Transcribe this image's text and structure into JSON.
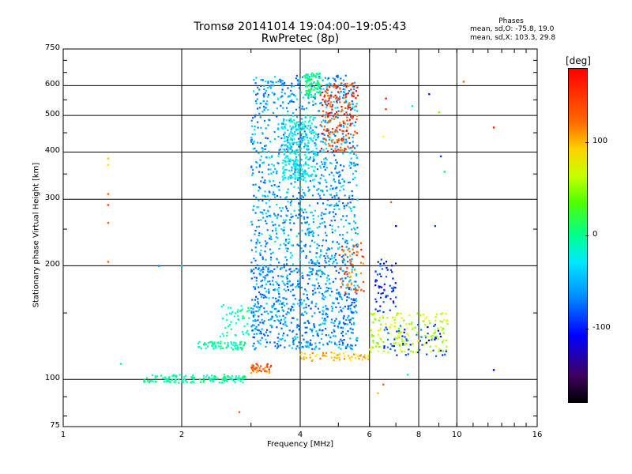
{
  "chart_data": {
    "type": "scatter",
    "title": "Tromsø 20141014 19:04:00–19:05:43",
    "subtitle": "RwPretec (8p)",
    "xlabel": "Frequency [MHz]",
    "ylabel": "Stationary phase Virtual Height [km]",
    "x_scale": "log",
    "y_scale": "log",
    "xlim": [
      1,
      16
    ],
    "ylim": [
      75,
      750
    ],
    "x_ticks": [
      1,
      2,
      4,
      6,
      8,
      10,
      16
    ],
    "x_tick_labels": [
      "1",
      "2",
      "4",
      "6",
      "8",
      "10",
      "16"
    ],
    "y_ticks": [
      75,
      100,
      200,
      300,
      400,
      500,
      600,
      750
    ],
    "y_tick_labels": [
      "75",
      "100",
      "200",
      "300",
      "400",
      "500",
      "600",
      "750"
    ],
    "grid": true,
    "legend": {
      "header": "Phases",
      "line_o": "mean, sd,O: -75.8, 19.0",
      "line_x": "mean, sd,X: 103.3, 29.8"
    },
    "colorbar": {
      "title": "[deg]",
      "ticks": [
        100,
        0,
        -100
      ],
      "tick_labels": [
        "100",
        "0",
        "-100"
      ],
      "range": [
        -180,
        180
      ]
    },
    "clusters": [
      {
        "x": [
          1.6,
          2.9
        ],
        "y": [
          98,
          103
        ],
        "phase": -30,
        "count": 140
      },
      {
        "x": [
          2.2,
          2.9
        ],
        "y": [
          120,
          126
        ],
        "phase": -35,
        "count": 70
      },
      {
        "x": [
          2.5,
          3.0
        ],
        "y": [
          130,
          160
        ],
        "phase": -40,
        "count": 50
      },
      {
        "x": [
          3.0,
          3.4
        ],
        "y": [
          104,
          110
        ],
        "phase": 150,
        "count": 40
      },
      {
        "x": [
          3.0,
          5.6
        ],
        "y": [
          200,
          640
        ],
        "phase": -90,
        "count": 1100
      },
      {
        "x": [
          3.0,
          5.6
        ],
        "y": [
          120,
          200
        ],
        "phase": -95,
        "count": 700
      },
      {
        "x": [
          3.6,
          4.4
        ],
        "y": [
          335,
          500
        ],
        "phase": -60,
        "count": 250
      },
      {
        "x": [
          4.1,
          4.5
        ],
        "y": [
          560,
          650
        ],
        "phase": -20,
        "count": 80
      },
      {
        "x": [
          4.5,
          5.6
        ],
        "y": [
          400,
          610
        ],
        "phase": 160,
        "count": 180
      },
      {
        "x": [
          5.0,
          5.8
        ],
        "y": [
          170,
          230
        ],
        "phase": 150,
        "count": 60
      },
      {
        "x": [
          4.0,
          6.0
        ],
        "y": [
          112,
          118
        ],
        "phase": 120,
        "count": 60
      },
      {
        "x": [
          6.0,
          9.5
        ],
        "y": [
          118,
          150
        ],
        "phase": 80,
        "count": 160
      },
      {
        "x": [
          6.2,
          7.0
        ],
        "y": [
          150,
          210
        ],
        "phase": -130,
        "count": 60
      },
      {
        "x": [
          6.5,
          9.5
        ],
        "y": [
          115,
          140
        ],
        "phase": -120,
        "count": 60
      }
    ],
    "scattered_points": [
      {
        "x": 1.3,
        "y": 385,
        "phase": 120
      },
      {
        "x": 1.3,
        "y": 370,
        "phase": 110
      },
      {
        "x": 1.3,
        "y": 310,
        "phase": 150
      },
      {
        "x": 1.3,
        "y": 290,
        "phase": 160
      },
      {
        "x": 1.3,
        "y": 260,
        "phase": 150
      },
      {
        "x": 1.3,
        "y": 205,
        "phase": 150
      },
      {
        "x": 1.4,
        "y": 110,
        "phase": -30
      },
      {
        "x": 10.4,
        "y": 615,
        "phase": 150
      },
      {
        "x": 12.4,
        "y": 465,
        "phase": 170
      },
      {
        "x": 12.4,
        "y": 106,
        "phase": -140
      },
      {
        "x": 8.5,
        "y": 570,
        "phase": -130
      },
      {
        "x": 9.0,
        "y": 510,
        "phase": 60
      },
      {
        "x": 9.1,
        "y": 390,
        "phase": -120
      },
      {
        "x": 9.3,
        "y": 355,
        "phase": -10
      },
      {
        "x": 7.7,
        "y": 530,
        "phase": -20
      },
      {
        "x": 6.6,
        "y": 555,
        "phase": 170
      },
      {
        "x": 6.6,
        "y": 520,
        "phase": 160
      },
      {
        "x": 6.5,
        "y": 440,
        "phase": 100
      },
      {
        "x": 7.0,
        "y": 255,
        "phase": -150
      },
      {
        "x": 8.8,
        "y": 255,
        "phase": -120
      },
      {
        "x": 6.8,
        "y": 295,
        "phase": 150
      },
      {
        "x": 6.5,
        "y": 97,
        "phase": 150
      },
      {
        "x": 7.5,
        "y": 103,
        "phase": -20
      },
      {
        "x": 6.3,
        "y": 92,
        "phase": 120
      },
      {
        "x": 2.8,
        "y": 82,
        "phase": 150
      },
      {
        "x": 1.75,
        "y": 200,
        "phase": -100
      },
      {
        "x": 2.0,
        "y": 200,
        "phase": -80
      }
    ]
  }
}
